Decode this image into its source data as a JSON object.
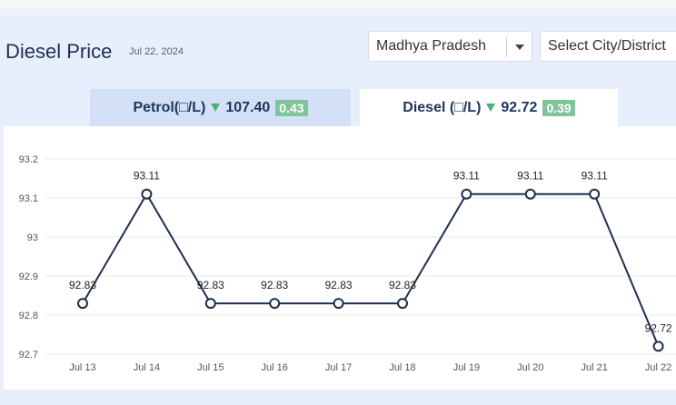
{
  "header": {
    "title": "Diesel Price",
    "date": "Jul 22, 2024",
    "state_select": {
      "value": "Madhya Pradesh"
    },
    "city_select": {
      "value": "Select City/District"
    }
  },
  "tabs": [
    {
      "label": "Petrol(□/L)",
      "price": "107.40",
      "change": "0.43",
      "active": false
    },
    {
      "label": "Diesel (□/L)",
      "price": "92.72",
      "change": "0.39",
      "active": true
    }
  ],
  "colors": {
    "line": "#1e2f4f",
    "badge": "#7fc49a",
    "down_arrow": "#4bb07a"
  },
  "chart_data": {
    "type": "line",
    "x": [
      "Jul 13",
      "Jul 14",
      "Jul 15",
      "Jul 16",
      "Jul 17",
      "Jul 18",
      "Jul 19",
      "Jul 20",
      "Jul 21",
      "Jul 22"
    ],
    "values": [
      92.83,
      93.11,
      92.83,
      92.83,
      92.83,
      92.83,
      93.11,
      93.11,
      93.11,
      92.72
    ],
    "labels": [
      "92.83",
      "93.11",
      "92.83",
      "92.83",
      "92.83",
      "92.83",
      "93.11",
      "93.11",
      "93.11",
      "92.72"
    ],
    "y_ticks": [
      "93.2",
      "93.1",
      "93",
      "92.9",
      "92.8",
      "92.7"
    ],
    "ylim": [
      92.7,
      93.2
    ],
    "grid": true
  }
}
